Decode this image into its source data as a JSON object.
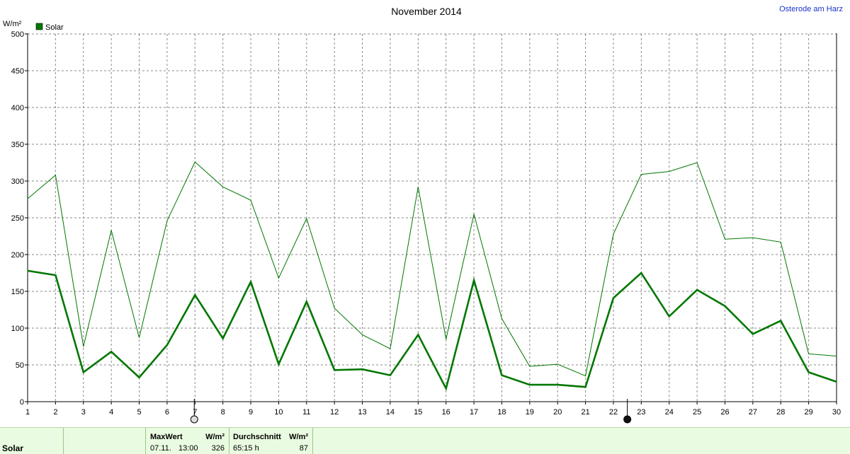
{
  "title": "November 2014",
  "location": "Osterode am Harz",
  "y_unit": "W/m²",
  "legend": {
    "label": "Solar",
    "color": "#007700"
  },
  "markers": {
    "full_moon_day": 7,
    "new_moon_day": 22.5
  },
  "chart_data": {
    "type": "line",
    "title": "November 2014",
    "ylabel": "W/m²",
    "xlabel": "",
    "ylim": [
      0,
      500
    ],
    "xlim": [
      1,
      30
    ],
    "yticks": [
      0,
      50,
      100,
      150,
      200,
      250,
      300,
      350,
      400,
      450,
      500
    ],
    "x": [
      1,
      2,
      3,
      4,
      5,
      6,
      7,
      8,
      9,
      10,
      11,
      12,
      13,
      14,
      15,
      16,
      17,
      18,
      19,
      20,
      21,
      22,
      23,
      24,
      25,
      26,
      27,
      28,
      29,
      30
    ],
    "grid": true,
    "legend_position": "top-left",
    "series": [
      {
        "name": "Solar",
        "role": "max",
        "color": "#007700",
        "values": [
          276,
          308,
          75,
          233,
          87,
          246,
          326,
          292,
          274,
          168,
          249,
          127,
          91,
          72,
          292,
          85,
          255,
          113,
          48,
          51,
          35,
          228,
          309,
          313,
          325,
          221,
          223,
          217,
          65,
          62
        ]
      },
      {
        "name": "Solar",
        "role": "average",
        "color": "#007700",
        "values": [
          178,
          172,
          40,
          68,
          33,
          77,
          145,
          86,
          163,
          51,
          136,
          43,
          44,
          36,
          91,
          18,
          165,
          36,
          23,
          23,
          20,
          141,
          175,
          116,
          152,
          130,
          92,
          110,
          40,
          27
        ]
      }
    ]
  },
  "footer": {
    "label": "Solar",
    "max_header": "MaxWert",
    "max_unit": "W/m²",
    "max_date": "07.11.",
    "max_time": "13:00",
    "max_value": "326",
    "avg_header": "Durchschnitt",
    "avg_unit": "W/m²",
    "avg_duration": "65:15 h",
    "avg_value": "87"
  }
}
